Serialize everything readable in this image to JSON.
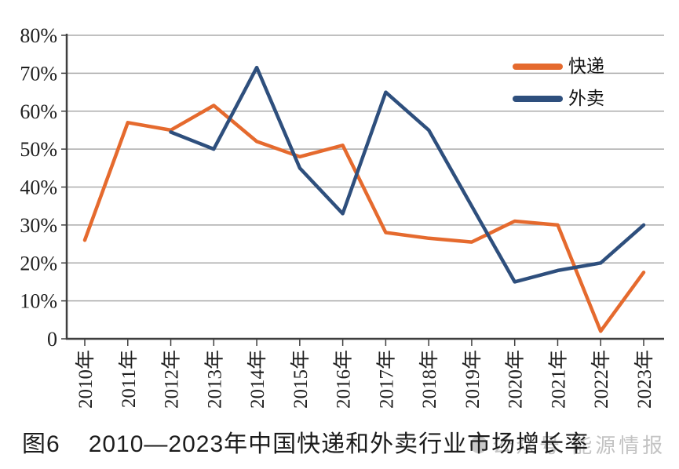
{
  "figure": {
    "caption": {
      "figure_label": "图6",
      "title": "2010—2023年中国快递和外卖行业市场增长率"
    },
    "watermark": {
      "icon": "circle-logo",
      "text": "公众号 能源情报"
    }
  },
  "chart_data": {
    "type": "line",
    "title": "2010—2023年中国快递和外卖行业市场增长率",
    "categories": [
      "2010年",
      "2011年",
      "2012年",
      "2013年",
      "2014年",
      "2015年",
      "2016年",
      "2017年",
      "2018年",
      "2019年",
      "2020年",
      "2021年",
      "2022年",
      "2023年"
    ],
    "series": [
      {
        "name": "快递",
        "color": "#E56A2E",
        "values": [
          26,
          57,
          55,
          61.5,
          52,
          48,
          51,
          28,
          26.5,
          25.5,
          31,
          30,
          2,
          17.5
        ]
      },
      {
        "name": "外卖",
        "color": "#2E4F7D",
        "values": [
          null,
          null,
          54.5,
          50,
          71.5,
          45,
          33,
          65,
          55,
          35,
          15,
          18,
          20,
          30
        ]
      }
    ],
    "ylim": [
      0,
      80
    ],
    "ytick_step": 10,
    "ytick_labels": [
      "0",
      "10%",
      "20%",
      "30%",
      "40%",
      "50%",
      "60%",
      "70%",
      "80%"
    ],
    "xlabel": "",
    "ylabel": "",
    "grid": true,
    "grid_color": "#ABABAB",
    "axis_color": "#3F3F3F",
    "legend_position": "top-right",
    "x_tick_label_rotation": -90
  }
}
